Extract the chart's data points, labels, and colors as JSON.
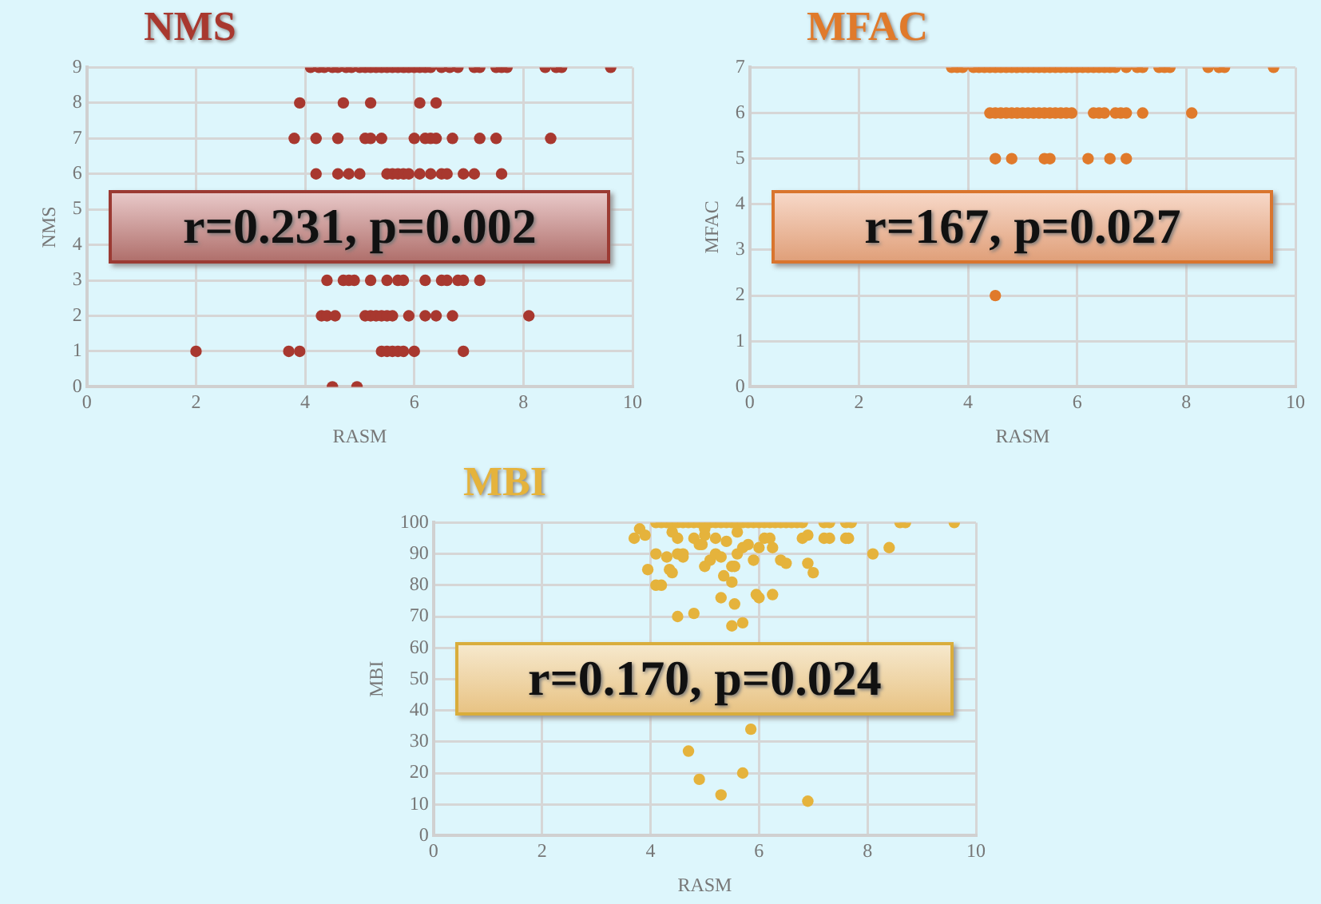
{
  "chart_data": [
    {
      "type": "scatter",
      "title": "NMS",
      "xlabel": "RASM",
      "ylabel": "NMS",
      "xlim": [
        0,
        10
      ],
      "xticks": [
        0,
        2,
        4,
        6,
        8,
        10
      ],
      "ylim": [
        0,
        9
      ],
      "yticks": [
        0,
        1,
        2,
        3,
        4,
        5,
        6,
        7,
        8,
        9
      ],
      "grid": true,
      "marker": "circle",
      "annotations": [
        "r=0.231, p=0.002"
      ],
      "series": [
        {
          "color": "#a8382f",
          "x": [
            4.1,
            4.25,
            4.35,
            4.5,
            4.6,
            4.75,
            4.85,
            5.0,
            5.1,
            5.2,
            5.3,
            5.4,
            5.5,
            5.6,
            5.7,
            5.8,
            5.9,
            6.0,
            6.1,
            6.2,
            6.3,
            6.5,
            6.65,
            6.8,
            7.1,
            7.2,
            7.5,
            7.6,
            7.7,
            8.4,
            8.6,
            8.7,
            9.6,
            3.9,
            4.7,
            5.2,
            6.1,
            6.4,
            3.8,
            4.2,
            4.6,
            5.1,
            5.2,
            5.4,
            6.0,
            6.2,
            6.3,
            6.4,
            6.7,
            7.2,
            7.5,
            8.5,
            4.2,
            4.6,
            4.8,
            5.0,
            5.5,
            5.6,
            5.7,
            5.8,
            5.9,
            6.1,
            6.3,
            6.5,
            6.6,
            6.9,
            7.1,
            7.6,
            4.4,
            4.7,
            4.8,
            4.9,
            5.2,
            5.5,
            5.7,
            5.8,
            6.2,
            6.5,
            6.6,
            6.8,
            6.9,
            7.2,
            4.3,
            4.4,
            4.55,
            5.1,
            5.2,
            5.3,
            5.4,
            5.5,
            5.6,
            5.9,
            6.2,
            6.4,
            6.7,
            8.1,
            2.0,
            3.7,
            3.9,
            5.4,
            5.5,
            5.6,
            5.7,
            5.8,
            6.0,
            6.9,
            4.5,
            4.95
          ],
          "values": [
            9,
            9,
            9,
            9,
            9,
            9,
            9,
            9,
            9,
            9,
            9,
            9,
            9,
            9,
            9,
            9,
            9,
            9,
            9,
            9,
            9,
            9,
            9,
            9,
            9,
            9,
            9,
            9,
            9,
            9,
            9,
            9,
            9,
            8,
            8,
            8,
            8,
            8,
            7,
            7,
            7,
            7,
            7,
            7,
            7,
            7,
            7,
            7,
            7,
            7,
            7,
            7,
            6,
            6,
            6,
            6,
            6,
            6,
            6,
            6,
            6,
            6,
            6,
            6,
            6,
            6,
            6,
            6,
            3,
            3,
            3,
            3,
            3,
            3,
            3,
            3,
            3,
            3,
            3,
            3,
            3,
            3,
            2,
            2,
            2,
            2,
            2,
            2,
            2,
            2,
            2,
            2,
            2,
            2,
            2,
            2,
            1,
            1,
            1,
            1,
            1,
            1,
            1,
            1,
            1,
            1,
            0,
            0
          ]
        }
      ]
    },
    {
      "type": "scatter",
      "title": "MFAC",
      "xlabel": "RASM",
      "ylabel": "MFAC",
      "xlim": [
        0,
        10
      ],
      "xticks": [
        0,
        2,
        4,
        6,
        8,
        10
      ],
      "ylim": [
        0,
        7
      ],
      "yticks": [
        0,
        1,
        2,
        3,
        4,
        5,
        6,
        7
      ],
      "grid": true,
      "marker": "circle",
      "annotations": [
        "r=167, p=0.027"
      ],
      "series": [
        {
          "color": "#e07a2b",
          "x": [
            3.7,
            3.8,
            3.9,
            4.1,
            4.2,
            4.3,
            4.4,
            4.5,
            4.6,
            4.7,
            4.8,
            4.9,
            5.0,
            5.1,
            5.2,
            5.3,
            5.4,
            5.5,
            5.6,
            5.7,
            5.8,
            5.9,
            6.0,
            6.1,
            6.2,
            6.3,
            6.4,
            6.5,
            6.6,
            6.7,
            6.9,
            7.1,
            7.2,
            7.5,
            7.6,
            7.7,
            8.4,
            8.6,
            8.7,
            9.6,
            4.4,
            4.5,
            4.6,
            4.7,
            4.8,
            4.9,
            5.0,
            5.1,
            5.2,
            5.3,
            5.4,
            5.5,
            5.6,
            5.7,
            5.8,
            5.9,
            6.3,
            6.4,
            6.5,
            6.7,
            6.8,
            6.9,
            7.2,
            8.1,
            4.5,
            4.8,
            5.4,
            5.5,
            6.2,
            6.6,
            6.9,
            4.5
          ],
          "values": [
            7,
            7,
            7,
            7,
            7,
            7,
            7,
            7,
            7,
            7,
            7,
            7,
            7,
            7,
            7,
            7,
            7,
            7,
            7,
            7,
            7,
            7,
            7,
            7,
            7,
            7,
            7,
            7,
            7,
            7,
            7,
            7,
            7,
            7,
            7,
            7,
            7,
            7,
            7,
            7,
            6,
            6,
            6,
            6,
            6,
            6,
            6,
            6,
            6,
            6,
            6,
            6,
            6,
            6,
            6,
            6,
            6,
            6,
            6,
            6,
            6,
            6,
            6,
            6,
            5,
            5,
            5,
            5,
            5,
            5,
            5,
            2
          ]
        }
      ]
    },
    {
      "type": "scatter",
      "title": "MBI",
      "xlabel": "RASM",
      "ylabel": "MBI",
      "xlim": [
        0,
        10
      ],
      "xticks": [
        0,
        2,
        4,
        6,
        8,
        10
      ],
      "ylim": [
        0,
        100
      ],
      "yticks": [
        0,
        10,
        20,
        30,
        40,
        50,
        60,
        70,
        80,
        90,
        100
      ],
      "grid": true,
      "marker": "circle",
      "annotations": [
        "r=0.170, p=0.024"
      ],
      "series": [
        {
          "color": "#e5b33c",
          "x": [
            4.1,
            4.2,
            4.3,
            4.4,
            4.5,
            4.6,
            4.7,
            4.8,
            4.9,
            5.0,
            5.1,
            5.2,
            5.3,
            5.4,
            5.5,
            5.6,
            5.7,
            5.8,
            5.9,
            6.0,
            6.1,
            6.2,
            6.3,
            6.4,
            6.5,
            6.6,
            6.7,
            6.8,
            7.2,
            7.3,
            7.6,
            7.7,
            8.6,
            8.7,
            9.6,
            3.7,
            3.8,
            3.9,
            4.1,
            3.95,
            4.1,
            4.2,
            4.3,
            4.4,
            4.35,
            4.5,
            4.5,
            4.6,
            4.6,
            4.8,
            4.9,
            5.0,
            4.95,
            5.0,
            5.1,
            5.2,
            5.3,
            5.2,
            5.4,
            5.3,
            5.35,
            5.5,
            5.55,
            5.5,
            5.55,
            5.6,
            5.7,
            5.8,
            5.9,
            5.95,
            6.0,
            6.0,
            6.1,
            6.2,
            6.25,
            6.25,
            6.4,
            6.5,
            6.8,
            6.9,
            6.9,
            7.0,
            7.2,
            7.3,
            7.6,
            7.65,
            8.1,
            8.4,
            4.5,
            4.8,
            5.5,
            5.7,
            5.85,
            4.7,
            4.9,
            5.7,
            5.3,
            6.9,
            4.4,
            5.6,
            5.0
          ],
          "values": [
            100,
            100,
            100,
            100,
            100,
            100,
            100,
            100,
            100,
            100,
            100,
            100,
            100,
            100,
            100,
            100,
            100,
            100,
            100,
            100,
            100,
            100,
            100,
            100,
            100,
            100,
            100,
            100,
            100,
            100,
            100,
            100,
            100,
            100,
            100,
            95,
            98,
            96,
            90,
            85,
            80,
            80,
            89,
            84,
            85,
            95,
            90,
            89,
            90,
            95,
            93,
            96,
            93,
            86,
            88,
            90,
            89,
            95,
            94,
            76,
            83,
            86,
            86,
            81,
            74,
            90,
            92,
            93,
            88,
            77,
            76,
            92,
            95,
            95,
            92,
            77,
            88,
            87,
            95,
            96,
            87,
            84,
            95,
            95,
            95,
            95,
            90,
            92,
            70,
            71,
            67,
            68,
            34,
            27,
            18,
            20,
            13,
            11,
            97,
            97,
            98
          ]
        }
      ]
    }
  ]
}
